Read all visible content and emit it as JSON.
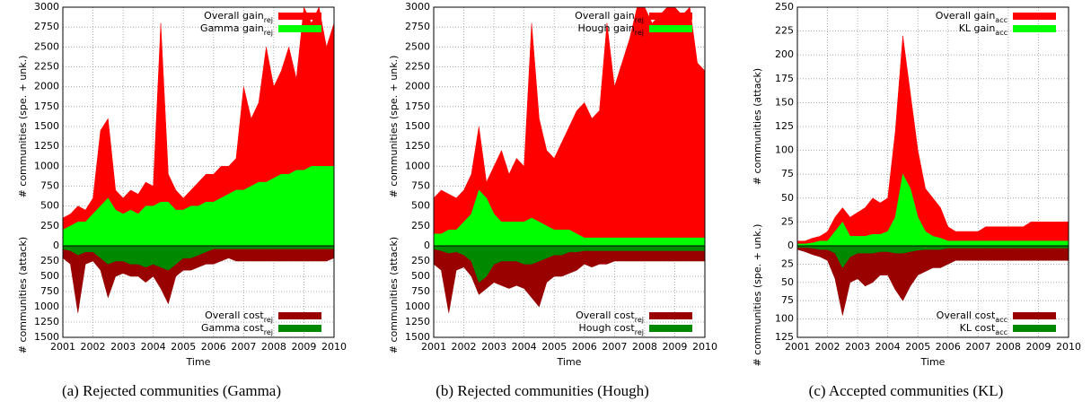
{
  "chart_data": [
    {
      "type": "area",
      "caption": "(a) Rejected communities (Gamma)",
      "xlabel": "Time",
      "ylabel": "# communities (spe. + unk.)",
      "y2label": "# communities (attack)",
      "x": [
        2001,
        2001.25,
        2001.5,
        2001.75,
        2002,
        2002.25,
        2002.5,
        2002.75,
        2003,
        2003.25,
        2003.5,
        2003.75,
        2004,
        2004.25,
        2004.5,
        2004.75,
        2005,
        2005.25,
        2005.5,
        2005.75,
        2006,
        2006.25,
        2006.5,
        2006.75,
        2007,
        2007.25,
        2007.5,
        2007.75,
        2008,
        2008.25,
        2008.5,
        2008.75,
        2009,
        2009.25,
        2009.5,
        2009.75,
        2010
      ],
      "xlim": [
        2001,
        2010
      ],
      "xticks": [
        2001,
        2002,
        2003,
        2004,
        2005,
        2006,
        2007,
        2008,
        2009,
        2010
      ],
      "ylim": [
        0,
        3000
      ],
      "yticks": [
        0,
        250,
        500,
        750,
        1000,
        1250,
        1500,
        1750,
        2000,
        2250,
        2500,
        2750,
        3000
      ],
      "y2lim": [
        0,
        1500
      ],
      "y2ticks": [
        250,
        500,
        750,
        1000,
        1250,
        1500
      ],
      "grid": true,
      "series": [
        {
          "name": "Overall gain",
          "sub": "rej",
          "color": "#ff0000",
          "values": [
            350,
            400,
            500,
            450,
            600,
            1450,
            1600,
            700,
            600,
            700,
            650,
            800,
            750,
            2800,
            900,
            700,
            600,
            700,
            800,
            900,
            900,
            1000,
            1000,
            1100,
            2000,
            1600,
            1800,
            2500,
            2000,
            2200,
            2500,
            2100,
            3000,
            2800,
            3000,
            2500,
            2800
          ]
        },
        {
          "name": "Gamma gain",
          "sub": "rej",
          "color": "#00ff00",
          "values": [
            200,
            250,
            300,
            300,
            400,
            500,
            600,
            450,
            400,
            450,
            400,
            500,
            500,
            550,
            550,
            450,
            450,
            500,
            500,
            550,
            550,
            600,
            650,
            700,
            700,
            750,
            800,
            800,
            850,
            900,
            900,
            950,
            950,
            1000,
            1000,
            1000,
            1000
          ]
        },
        {
          "name": "Overall cost",
          "sub": "rej",
          "color": "#990000",
          "axis": "y2",
          "values": [
            200,
            300,
            1100,
            300,
            250,
            400,
            850,
            500,
            450,
            500,
            500,
            600,
            500,
            700,
            950,
            500,
            400,
            400,
            350,
            300,
            300,
            250,
            200,
            250,
            250,
            250,
            250,
            250,
            250,
            250,
            250,
            250,
            250,
            250,
            250,
            250,
            200
          ]
        },
        {
          "name": "Gamma cost",
          "sub": "rej",
          "color": "#008800",
          "axis": "y2",
          "values": [
            50,
            80,
            150,
            100,
            100,
            200,
            300,
            250,
            250,
            300,
            300,
            350,
            300,
            350,
            400,
            300,
            200,
            200,
            150,
            100,
            50,
            50,
            50,
            50,
            50,
            50,
            50,
            50,
            50,
            50,
            50,
            50,
            50,
            50,
            50,
            50,
            50
          ]
        }
      ]
    },
    {
      "type": "area",
      "caption": "(b) Rejected communities (Hough)",
      "xlabel": "Time",
      "ylabel": "# communities (spe. + unk.)",
      "y2label": "# communities (attack)",
      "x": [
        2001,
        2001.25,
        2001.5,
        2001.75,
        2002,
        2002.25,
        2002.5,
        2002.75,
        2003,
        2003.25,
        2003.5,
        2003.75,
        2004,
        2004.25,
        2004.5,
        2004.75,
        2005,
        2005.25,
        2005.5,
        2005.75,
        2006,
        2006.25,
        2006.5,
        2006.75,
        2007,
        2007.25,
        2007.5,
        2007.75,
        2008,
        2008.25,
        2008.5,
        2008.75,
        2009,
        2009.25,
        2009.5,
        2009.75,
        2010
      ],
      "xlim": [
        2001,
        2010
      ],
      "xticks": [
        2001,
        2002,
        2003,
        2004,
        2005,
        2006,
        2007,
        2008,
        2009,
        2010
      ],
      "ylim": [
        0,
        3000
      ],
      "yticks": [
        0,
        250,
        500,
        750,
        1000,
        1250,
        1500,
        1750,
        2000,
        2250,
        2500,
        2750,
        3000
      ],
      "y2lim": [
        0,
        1500
      ],
      "y2ticks": [
        250,
        500,
        750,
        1000,
        1250,
        1500
      ],
      "grid": true,
      "series": [
        {
          "name": "Overall gain",
          "sub": "rej",
          "color": "#ff0000",
          "values": [
            600,
            700,
            650,
            600,
            700,
            900,
            1500,
            800,
            1000,
            1200,
            900,
            1100,
            1000,
            2800,
            1600,
            1200,
            1100,
            1300,
            1500,
            1700,
            1800,
            1600,
            1700,
            2800,
            2000,
            2300,
            2600,
            3000,
            3000,
            2800,
            2900,
            3000,
            3000,
            2900,
            3000,
            2300,
            2200
          ]
        },
        {
          "name": "Hough gain",
          "sub": "rej",
          "color": "#00ff00",
          "values": [
            150,
            150,
            200,
            200,
            300,
            400,
            700,
            600,
            400,
            300,
            300,
            300,
            300,
            350,
            300,
            250,
            200,
            200,
            200,
            150,
            100,
            100,
            100,
            100,
            100,
            100,
            100,
            100,
            100,
            100,
            100,
            100,
            100,
            100,
            100,
            100,
            100
          ]
        },
        {
          "name": "Overall cost",
          "sub": "rej",
          "color": "#990000",
          "axis": "y2",
          "values": [
            300,
            400,
            1100,
            400,
            350,
            500,
            800,
            700,
            600,
            650,
            700,
            650,
            700,
            850,
            1000,
            600,
            500,
            500,
            450,
            400,
            300,
            350,
            300,
            300,
            250,
            250,
            250,
            250,
            250,
            250,
            250,
            250,
            250,
            250,
            250,
            250,
            250
          ]
        },
        {
          "name": "Hough cost",
          "sub": "rej",
          "color": "#008800",
          "axis": "y2",
          "values": [
            50,
            80,
            120,
            100,
            150,
            250,
            600,
            500,
            300,
            250,
            250,
            250,
            300,
            300,
            250,
            200,
            150,
            150,
            100,
            100,
            80,
            80,
            80,
            80,
            80,
            80,
            80,
            80,
            80,
            80,
            80,
            80,
            80,
            80,
            80,
            80,
            80
          ]
        }
      ]
    },
    {
      "type": "area",
      "caption": "(c) Accepted communities (KL)",
      "xlabel": "Time",
      "ylabel": "# communities (attack)",
      "y2label": "# communities (spe. + unk.)",
      "x": [
        2001,
        2001.25,
        2001.5,
        2001.75,
        2002,
        2002.25,
        2002.5,
        2002.75,
        2003,
        2003.25,
        2003.5,
        2003.75,
        2004,
        2004.25,
        2004.5,
        2004.75,
        2005,
        2005.25,
        2005.5,
        2005.75,
        2006,
        2006.25,
        2006.5,
        2006.75,
        2007,
        2007.25,
        2007.5,
        2007.75,
        2008,
        2008.25,
        2008.5,
        2008.75,
        2009,
        2009.25,
        2009.5,
        2009.75,
        2010
      ],
      "xlim": [
        2001,
        2010
      ],
      "xticks": [
        2001,
        2002,
        2003,
        2004,
        2005,
        2006,
        2007,
        2008,
        2009,
        2010
      ],
      "ylim": [
        0,
        250
      ],
      "yticks": [
        0,
        25,
        50,
        75,
        100,
        125,
        150,
        175,
        200,
        225,
        250
      ],
      "y2lim": [
        0,
        125
      ],
      "y2ticks": [
        25,
        50,
        75,
        100,
        125
      ],
      "grid": true,
      "series": [
        {
          "name": "Overall gain",
          "sub": "acc",
          "color": "#ff0000",
          "values": [
            5,
            5,
            8,
            10,
            15,
            30,
            40,
            30,
            35,
            40,
            50,
            45,
            50,
            120,
            220,
            160,
            100,
            60,
            50,
            40,
            20,
            15,
            15,
            15,
            15,
            20,
            20,
            20,
            20,
            20,
            20,
            25,
            25,
            25,
            25,
            25,
            25
          ]
        },
        {
          "name": "KL gain",
          "sub": "acc",
          "color": "#00ff00",
          "values": [
            2,
            2,
            3,
            5,
            5,
            15,
            25,
            10,
            10,
            10,
            12,
            12,
            15,
            30,
            75,
            60,
            30,
            15,
            10,
            8,
            5,
            5,
            5,
            5,
            5,
            5,
            5,
            5,
            5,
            5,
            5,
            5,
            5,
            5,
            5,
            5,
            5
          ]
        },
        {
          "name": "Overall cost",
          "sub": "acc",
          "color": "#990000",
          "axis": "y2",
          "values": [
            5,
            8,
            12,
            15,
            20,
            45,
            95,
            50,
            45,
            55,
            50,
            40,
            40,
            60,
            75,
            55,
            40,
            35,
            30,
            30,
            25,
            20,
            20,
            20,
            20,
            20,
            20,
            20,
            20,
            20,
            20,
            20,
            20,
            20,
            20,
            20,
            20
          ]
        },
        {
          "name": "KL cost",
          "sub": "acc",
          "color": "#008800",
          "axis": "y2",
          "values": [
            2,
            2,
            3,
            5,
            5,
            10,
            30,
            15,
            10,
            10,
            10,
            8,
            8,
            10,
            10,
            8,
            6,
            5,
            5,
            5,
            3,
            3,
            3,
            3,
            3,
            3,
            3,
            3,
            3,
            3,
            3,
            3,
            3,
            3,
            3,
            3,
            3
          ]
        }
      ]
    }
  ]
}
